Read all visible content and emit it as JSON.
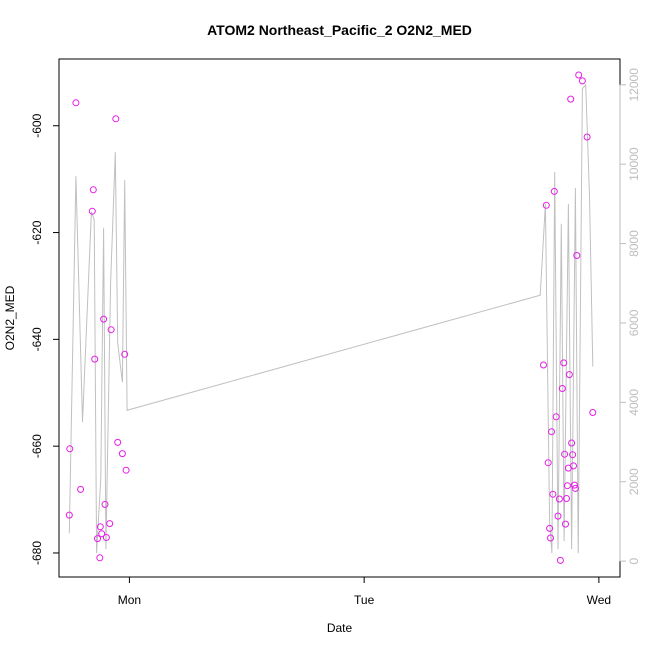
{
  "chart_data": {
    "type": "scatter",
    "title": "ATOM2 Northeast_Pacific_2 O2N2_MED",
    "xlabel": "Date",
    "ylabel": "O2N2_MED",
    "x_unit": "days",
    "xlim": [
      -0.3,
      2.09
    ],
    "ylim": [
      -684.5,
      -587.5
    ],
    "y2lim": [
      -400,
      12650
    ],
    "x_ticks": [
      {
        "value": 0,
        "label": "Mon"
      },
      {
        "value": 1,
        "label": "Tue"
      },
      {
        "value": 2,
        "label": "Wed"
      }
    ],
    "y_ticks": [
      {
        "value": -600,
        "label": "-600"
      },
      {
        "value": -620,
        "label": "-620"
      },
      {
        "value": -640,
        "label": "-640"
      },
      {
        "value": -660,
        "label": "-660"
      },
      {
        "value": -680,
        "label": "-680"
      }
    ],
    "y2_ticks": [
      {
        "value": 0,
        "label": "0"
      },
      {
        "value": 2000,
        "label": "2000"
      },
      {
        "value": 4000,
        "label": "4000"
      },
      {
        "value": 6000,
        "label": "6000"
      },
      {
        "value": 8000,
        "label": "8000"
      },
      {
        "value": 10000,
        "label": "10000"
      },
      {
        "value": 12000,
        "label": "12000"
      }
    ],
    "colors": {
      "points": "#e61ee6",
      "line": "#c0c0c0",
      "axis": "#000000",
      "right_axis": "#bdbdbd"
    },
    "series": [
      {
        "kind": "points",
        "axis": "left",
        "points": [
          [
            -0.256,
            -672.9
          ],
          [
            -0.254,
            -660.5
          ],
          [
            -0.228,
            -595.7
          ],
          [
            -0.208,
            -668.1
          ],
          [
            -0.158,
            -616.0
          ],
          [
            -0.154,
            -612.0
          ],
          [
            -0.148,
            -643.7
          ],
          [
            -0.136,
            -677.3
          ],
          [
            -0.126,
            -680.9
          ],
          [
            -0.124,
            -675.1
          ],
          [
            -0.118,
            -676.4
          ],
          [
            -0.11,
            -636.2
          ],
          [
            -0.104,
            -670.9
          ],
          [
            -0.098,
            -677.1
          ],
          [
            -0.084,
            -674.5
          ],
          [
            -0.078,
            -638.2
          ],
          [
            -0.058,
            -598.7
          ],
          [
            -0.05,
            -659.3
          ],
          [
            -0.03,
            -661.4
          ],
          [
            -0.02,
            -642.8
          ],
          [
            -0.014,
            -664.5
          ],
          [
            1.764,
            -644.8
          ],
          [
            1.776,
            -614.9
          ],
          [
            1.784,
            -663.1
          ],
          [
            1.79,
            -675.4
          ],
          [
            1.794,
            -677.2
          ],
          [
            1.798,
            -657.3
          ],
          [
            1.804,
            -669.0
          ],
          [
            1.81,
            -612.3
          ],
          [
            1.818,
            -654.5
          ],
          [
            1.826,
            -673.1
          ],
          [
            1.832,
            -669.9
          ],
          [
            1.836,
            -681.4
          ],
          [
            1.844,
            -649.2
          ],
          [
            1.85,
            -644.4
          ],
          [
            1.854,
            -661.5
          ],
          [
            1.858,
            -674.6
          ],
          [
            1.862,
            -669.8
          ],
          [
            1.866,
            -667.4
          ],
          [
            1.87,
            -664.1
          ],
          [
            1.874,
            -646.6
          ],
          [
            1.88,
            -595.0
          ],
          [
            1.884,
            -659.4
          ],
          [
            1.888,
            -661.6
          ],
          [
            1.892,
            -663.7
          ],
          [
            1.896,
            -667.3
          ],
          [
            1.9,
            -667.9
          ],
          [
            1.906,
            -624.3
          ],
          [
            1.914,
            -590.5
          ],
          [
            1.93,
            -591.6
          ],
          [
            1.95,
            -602.1
          ],
          [
            1.974,
            -653.7
          ]
        ]
      },
      {
        "kind": "line",
        "axis": "right",
        "points": [
          [
            -0.256,
            700
          ],
          [
            -0.228,
            9700
          ],
          [
            -0.2,
            3500
          ],
          [
            -0.162,
            8800
          ],
          [
            -0.15,
            8600
          ],
          [
            -0.14,
            200
          ],
          [
            -0.122,
            2100
          ],
          [
            -0.11,
            8400
          ],
          [
            -0.1,
            300
          ],
          [
            -0.08,
            7000
          ],
          [
            -0.06,
            10300
          ],
          [
            -0.05,
            5500
          ],
          [
            -0.03,
            4500
          ],
          [
            -0.02,
            9600
          ],
          [
            -0.01,
            3800
          ],
          [
            1.75,
            6700
          ],
          [
            1.772,
            9000
          ],
          [
            1.79,
            1000
          ],
          [
            1.8,
            200
          ],
          [
            1.812,
            9800
          ],
          [
            1.826,
            300
          ],
          [
            1.84,
            8500
          ],
          [
            1.852,
            500
          ],
          [
            1.87,
            9000
          ],
          [
            1.884,
            300
          ],
          [
            1.9,
            9400
          ],
          [
            1.912,
            200
          ],
          [
            1.93,
            11900
          ],
          [
            1.944,
            12000
          ],
          [
            1.96,
            9200
          ],
          [
            1.974,
            4900
          ]
        ]
      }
    ]
  }
}
